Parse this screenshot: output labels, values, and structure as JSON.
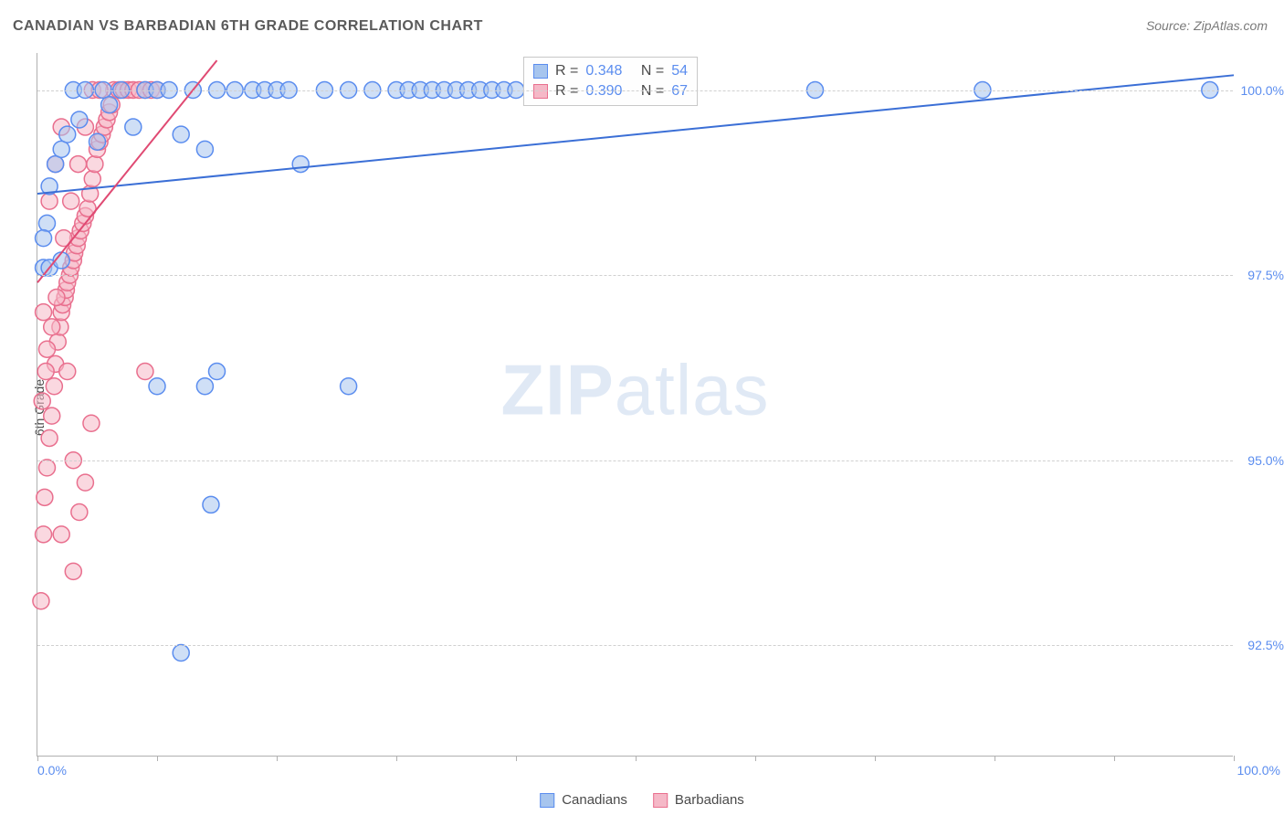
{
  "title": "CANADIAN VS BARBADIAN 6TH GRADE CORRELATION CHART",
  "source": "Source: ZipAtlas.com",
  "ylabel": "6th Grade",
  "watermark_zip": "ZIP",
  "watermark_atlas": "atlas",
  "chart": {
    "type": "scatter",
    "background_color": "#ffffff",
    "grid_color": "#d0d0d0",
    "axis_color": "#b0b0b0",
    "tick_label_color": "#5b8def",
    "label_fontsize": 14,
    "title_fontsize": 16,
    "xlim": [
      0,
      100
    ],
    "ylim": [
      91,
      100.5
    ],
    "y_gridlines": [
      92.5,
      95.0,
      97.5,
      100.0
    ],
    "y_tick_labels": [
      "92.5%",
      "95.0%",
      "97.5%",
      "100.0%"
    ],
    "x_ticks": [
      0,
      10,
      20,
      30,
      40,
      50,
      60,
      70,
      80,
      90,
      100
    ],
    "x_min_label": "0.0%",
    "x_max_label": "100.0%",
    "marker_radius": 9,
    "marker_stroke_width": 1.5,
    "series": [
      {
        "name": "Canadians",
        "fill_color": "#a7c5ee",
        "stroke_color": "#5b8def",
        "fill_opacity": 0.55,
        "R_label": "R =",
        "R": "0.348",
        "N_label": "N =",
        "N": "54",
        "trend": {
          "x1": 0,
          "y1": 98.6,
          "x2": 100,
          "y2": 100.2,
          "color": "#3b6fd6",
          "width": 2
        },
        "points": [
          [
            0.5,
            97.6
          ],
          [
            0.8,
            98.2
          ],
          [
            1.0,
            98.7
          ],
          [
            1.5,
            99.0
          ],
          [
            2.0,
            99.2
          ],
          [
            2.5,
            99.4
          ],
          [
            3.0,
            100.0
          ],
          [
            3.5,
            99.6
          ],
          [
            4.0,
            100.0
          ],
          [
            5.0,
            99.3
          ],
          [
            5.5,
            100.0
          ],
          [
            6.0,
            99.8
          ],
          [
            7.0,
            100.0
          ],
          [
            8.0,
            99.5
          ],
          [
            9.0,
            100.0
          ],
          [
            10.0,
            100.0
          ],
          [
            11.0,
            100.0
          ],
          [
            12.0,
            99.4
          ],
          [
            13.0,
            100.0
          ],
          [
            14.0,
            99.2
          ],
          [
            15.0,
            100.0
          ],
          [
            16.5,
            100.0
          ],
          [
            18.0,
            100.0
          ],
          [
            19.0,
            100.0
          ],
          [
            20.0,
            100.0
          ],
          [
            21.0,
            100.0
          ],
          [
            22.0,
            99.0
          ],
          [
            24.0,
            100.0
          ],
          [
            26.0,
            100.0
          ],
          [
            28.0,
            100.0
          ],
          [
            30.0,
            100.0
          ],
          [
            31.0,
            100.0
          ],
          [
            32.0,
            100.0
          ],
          [
            33.0,
            100.0
          ],
          [
            34.0,
            100.0
          ],
          [
            35.0,
            100.0
          ],
          [
            36.0,
            100.0
          ],
          [
            37.0,
            100.0
          ],
          [
            38.0,
            100.0
          ],
          [
            39.0,
            100.0
          ],
          [
            40.0,
            100.0
          ],
          [
            42.0,
            100.0
          ],
          [
            65.0,
            100.0
          ],
          [
            79.0,
            100.0
          ],
          [
            98.0,
            100.0
          ],
          [
            10.0,
            96.0
          ],
          [
            14.0,
            96.0
          ],
          [
            26.0,
            96.0
          ],
          [
            15.0,
            96.2
          ],
          [
            12.0,
            92.4
          ],
          [
            1.0,
            97.6
          ],
          [
            0.5,
            98.0
          ],
          [
            2.0,
            97.7
          ],
          [
            14.5,
            94.4
          ]
        ]
      },
      {
        "name": "Barbadians",
        "fill_color": "#f5b8c7",
        "stroke_color": "#e96f8e",
        "fill_opacity": 0.55,
        "R_label": "R =",
        "R": "0.390",
        "N_label": "N =",
        "N": "67",
        "trend": {
          "x1": 0,
          "y1": 97.4,
          "x2": 15,
          "y2": 100.4,
          "color": "#e04a73",
          "width": 2
        },
        "points": [
          [
            0.3,
            93.1
          ],
          [
            0.5,
            94.0
          ],
          [
            0.6,
            94.5
          ],
          [
            0.8,
            94.9
          ],
          [
            1.0,
            95.3
          ],
          [
            1.2,
            95.6
          ],
          [
            1.4,
            96.0
          ],
          [
            1.5,
            96.3
          ],
          [
            1.7,
            96.6
          ],
          [
            1.9,
            96.8
          ],
          [
            2.0,
            97.0
          ],
          [
            2.1,
            97.1
          ],
          [
            2.3,
            97.2
          ],
          [
            2.4,
            97.3
          ],
          [
            2.5,
            97.4
          ],
          [
            2.7,
            97.5
          ],
          [
            2.8,
            97.6
          ],
          [
            3.0,
            97.7
          ],
          [
            3.1,
            97.8
          ],
          [
            3.3,
            97.9
          ],
          [
            3.4,
            98.0
          ],
          [
            3.6,
            98.1
          ],
          [
            3.8,
            98.2
          ],
          [
            4.0,
            98.3
          ],
          [
            4.2,
            98.4
          ],
          [
            4.4,
            98.6
          ],
          [
            4.6,
            98.8
          ],
          [
            4.8,
            99.0
          ],
          [
            5.0,
            99.2
          ],
          [
            5.2,
            99.3
          ],
          [
            5.4,
            99.4
          ],
          [
            5.6,
            99.5
          ],
          [
            5.8,
            99.6
          ],
          [
            6.0,
            99.7
          ],
          [
            6.2,
            99.8
          ],
          [
            6.4,
            100.0
          ],
          [
            6.8,
            100.0
          ],
          [
            7.2,
            100.0
          ],
          [
            7.6,
            100.0
          ],
          [
            8.0,
            100.0
          ],
          [
            8.5,
            100.0
          ],
          [
            9.0,
            100.0
          ],
          [
            9.5,
            100.0
          ],
          [
            10.0,
            100.0
          ],
          [
            2.5,
            96.2
          ],
          [
            3.0,
            95.0
          ],
          [
            3.5,
            94.3
          ],
          [
            4.0,
            94.7
          ],
          [
            1.0,
            98.5
          ],
          [
            1.5,
            99.0
          ],
          [
            2.0,
            99.5
          ],
          [
            0.5,
            97.0
          ],
          [
            0.8,
            96.5
          ],
          [
            1.2,
            96.8
          ],
          [
            1.6,
            97.2
          ],
          [
            2.2,
            98.0
          ],
          [
            2.8,
            98.5
          ],
          [
            3.4,
            99.0
          ],
          [
            4.0,
            99.5
          ],
          [
            4.6,
            100.0
          ],
          [
            5.2,
            100.0
          ],
          [
            0.4,
            95.8
          ],
          [
            0.7,
            96.2
          ],
          [
            9.0,
            96.2
          ],
          [
            2.0,
            94.0
          ],
          [
            3.0,
            93.5
          ],
          [
            4.5,
            95.5
          ]
        ]
      }
    ]
  },
  "legend": {
    "items": [
      {
        "label": "Canadians",
        "fill": "#a7c5ee",
        "stroke": "#5b8def"
      },
      {
        "label": "Barbadians",
        "fill": "#f5b8c7",
        "stroke": "#e96f8e"
      }
    ]
  }
}
